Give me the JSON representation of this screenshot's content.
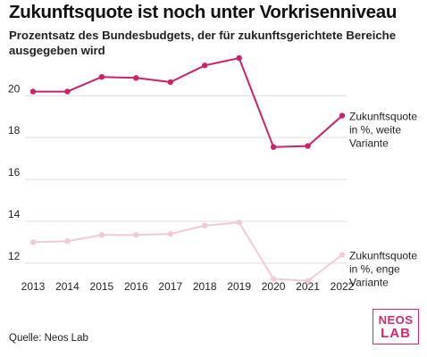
{
  "title": "Zukunftsquote ist noch unter Vorkrisenniveau",
  "subtitle": "Prozentsatz des Bundesbudgets, der für zukunftsgerichtete Bereiche ausgegeben wird",
  "source": "Quelle: Neos Lab",
  "logo": {
    "line1": "NEOS",
    "line2": "LAB",
    "color": "#d6276f"
  },
  "chart_data": {
    "type": "line",
    "x": [
      2013,
      2014,
      2015,
      2016,
      2017,
      2018,
      2019,
      2020,
      2021,
      2022
    ],
    "x_tick_labels": [
      "2013",
      "2014",
      "2015",
      "2016",
      "2017",
      "2018",
      "2019",
      "2020",
      "2021",
      "2022"
    ],
    "y_ticks": [
      12,
      14,
      16,
      18,
      20
    ],
    "y_tick_labels": [
      "12",
      "14",
      "16",
      "18",
      "20"
    ],
    "ylim": [
      11.1,
      22.4
    ],
    "grid": "horizontal",
    "series": [
      {
        "name": "Zukunftsquote in %, weite Variante",
        "label_lines": [
          "Zukunftsquote",
          "in %, weite",
          "Variante"
        ],
        "color": "#c8236b",
        "values": [
          20.2,
          20.2,
          20.9,
          20.85,
          20.65,
          21.45,
          21.8,
          17.55,
          17.6,
          19.05
        ]
      },
      {
        "name": "Zukunftsquote in %, enge Variante",
        "label_lines": [
          "Zukunftsquote",
          "in %, enge",
          "Variante"
        ],
        "color": "#f2c9d8",
        "values": [
          13.0,
          13.05,
          13.35,
          13.35,
          13.4,
          13.8,
          13.95,
          11.25,
          11.15,
          12.4
        ]
      }
    ]
  }
}
